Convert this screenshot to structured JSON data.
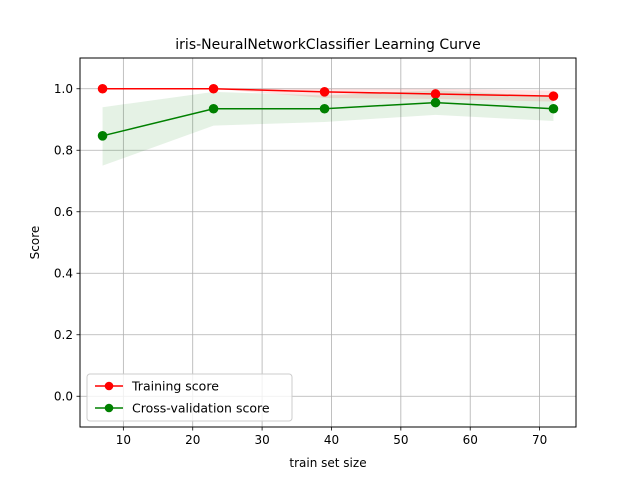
{
  "chart_data": {
    "type": "line",
    "title": "iris-NeuralNetworkClassifier Learning Curve",
    "xlabel": "train set size",
    "ylabel": "Score",
    "xlim": [
      3.75,
      75.25
    ],
    "ylim": [
      -0.1,
      1.1
    ],
    "xticks": [
      10,
      20,
      30,
      40,
      50,
      60,
      70
    ],
    "yticks": [
      0.0,
      0.2,
      0.4,
      0.6,
      0.8,
      1.0
    ],
    "xtick_labels": [
      "10",
      "20",
      "30",
      "40",
      "50",
      "60",
      "70"
    ],
    "ytick_labels": [
      "0.0",
      "0.2",
      "0.4",
      "0.6",
      "0.8",
      "1.0"
    ],
    "grid": true,
    "legend_position": "lower-left",
    "x": [
      7,
      23,
      39,
      55,
      72
    ],
    "series": [
      {
        "name": "Training score",
        "color": "#ff0000",
        "values": [
          1.0,
          1.0,
          0.99,
          0.983,
          0.976
        ],
        "band_lower": [
          1.0,
          1.0,
          0.97,
          0.967,
          0.958
        ],
        "band_upper": [
          1.0,
          1.0,
          1.0,
          1.0,
          0.994
        ]
      },
      {
        "name": "Cross-validation score",
        "color": "#008000",
        "values": [
          0.847,
          0.935,
          0.935,
          0.955,
          0.935
        ],
        "band_lower": [
          0.75,
          0.88,
          0.892,
          0.915,
          0.895
        ],
        "band_upper": [
          0.94,
          0.99,
          0.978,
          0.995,
          0.975
        ]
      }
    ]
  }
}
